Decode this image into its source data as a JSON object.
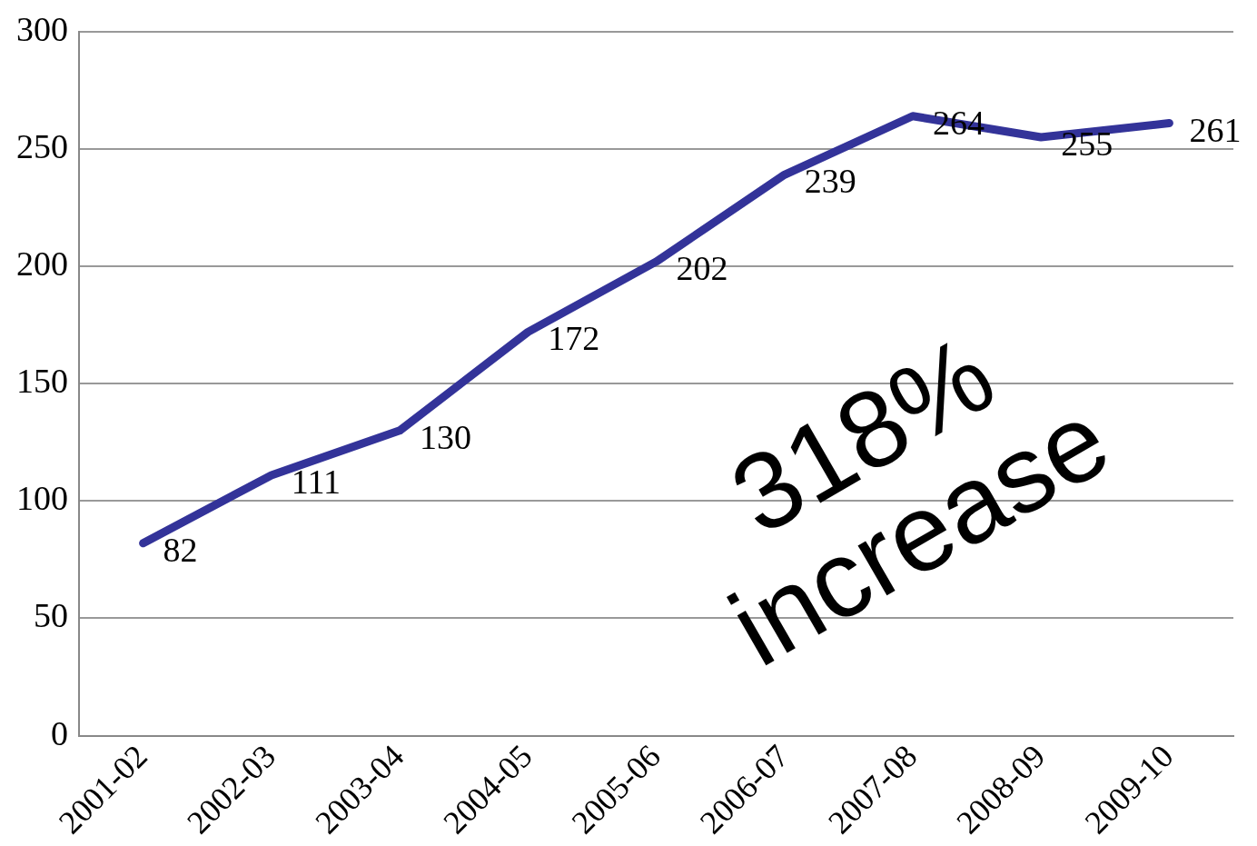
{
  "chart_data": {
    "type": "line",
    "categories": [
      "2001-02",
      "2002-03",
      "2003-04",
      "2004-05",
      "2005-06",
      "2006-07",
      "2007-08",
      "2008-09",
      "2009-10"
    ],
    "series": [
      {
        "color": "#333399",
        "values": [
          82,
          111,
          130,
          172,
          202,
          239,
          264,
          255,
          261
        ]
      }
    ],
    "ylim": [
      0,
      300
    ],
    "yticks": [
      0,
      50,
      100,
      150,
      200,
      250,
      300
    ],
    "grid": "y",
    "legend": false,
    "marker": "none",
    "line_style": "solid",
    "data_labels": true,
    "annotations": [
      "318% increase"
    ]
  }
}
